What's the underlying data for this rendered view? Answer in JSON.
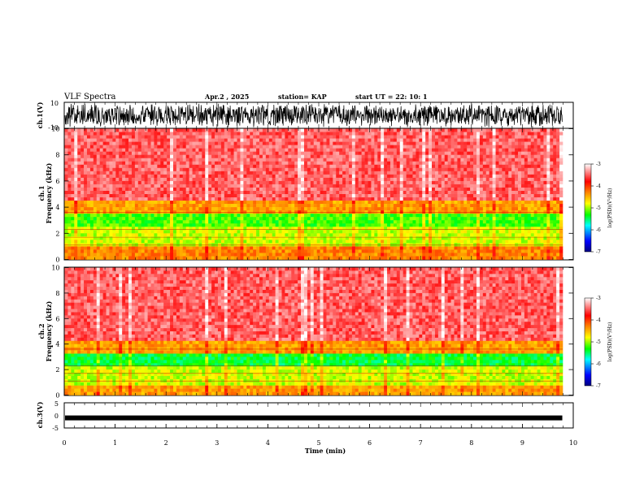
{
  "header": {
    "title": "VLF Spectra",
    "date": "Apr.2 , 2025",
    "station": "station= KAP",
    "start": "start UT = 22: 10: 1"
  },
  "chart_data": [
    {
      "type": "line",
      "ylabel": "ch.1(V)",
      "ylim": [
        -10,
        10
      ],
      "yticks": [
        "10",
        "-10"
      ],
      "xlim": [
        0,
        10
      ],
      "description_series": "dense waveform, fills roughly -10 to 10 V"
    },
    {
      "type": "heatmap",
      "ylabel": "ch.1\nFrequency (kHz)",
      "ylim": [
        0,
        10
      ],
      "yticks": [
        "0",
        "2",
        "4",
        "6",
        "8",
        "10"
      ],
      "xlim": [
        0,
        9.8
      ],
      "colorbar": {
        "label": "log(PSD)(V²/Hz)",
        "range": [
          -7,
          -3
        ],
        "ticks": [
          "-3",
          "-4",
          "-5",
          "-6",
          "-7"
        ],
        "colors": [
          "#000080",
          "#0000ff",
          "#00ffff",
          "#00ff00",
          "#ffff00",
          "#ff8000",
          "#ff0000",
          "#ffffff"
        ]
      },
      "bands": [
        {
          "from": 0,
          "to": 1,
          "level": -4.3
        },
        {
          "from": 1,
          "to": 2.5,
          "level": -4.9
        },
        {
          "from": 2.5,
          "to": 3.4,
          "level": -5.2
        },
        {
          "from": 3.4,
          "to": 4.5,
          "level": -4.4
        },
        {
          "from": 4.5,
          "to": 10,
          "level": -3.5
        }
      ]
    },
    {
      "type": "heatmap",
      "ylabel": "ch.2\nFrequency (kHz)",
      "ylim": [
        0,
        10
      ],
      "yticks": [
        "0",
        "2",
        "4",
        "6",
        "8",
        "10"
      ],
      "xlim": [
        0,
        9.8
      ],
      "colorbar": {
        "label": "log(PSD)(V²/Hz)",
        "range": [
          -7,
          -3
        ],
        "ticks": [
          "-3",
          "-4",
          "-5",
          "-6",
          "-7"
        ],
        "colors": [
          "#000080",
          "#0000ff",
          "#00ffff",
          "#00ff00",
          "#ffff00",
          "#ff8000",
          "#ff0000",
          "#ffffff"
        ]
      },
      "bands": [
        {
          "from": 0,
          "to": 0.8,
          "level": -4.4
        },
        {
          "from": 0.8,
          "to": 2.2,
          "level": -4.9
        },
        {
          "from": 2.2,
          "to": 3.2,
          "level": -5.4
        },
        {
          "from": 3.2,
          "to": 4.3,
          "level": -4.4
        },
        {
          "from": 4.3,
          "to": 10,
          "level": -3.5
        }
      ]
    },
    {
      "type": "line",
      "ylabel": "ch.3(V)",
      "ylim": [
        -5,
        5
      ],
      "yticks": [
        "5",
        "0",
        "-5"
      ],
      "xlim": [
        0,
        10
      ],
      "xlabel": "Time (min)",
      "xticks": [
        "0",
        "1",
        "2",
        "3",
        "4",
        "5",
        "6",
        "7",
        "8",
        "9",
        "10"
      ],
      "description_series": "narrow band near -1 V"
    }
  ]
}
